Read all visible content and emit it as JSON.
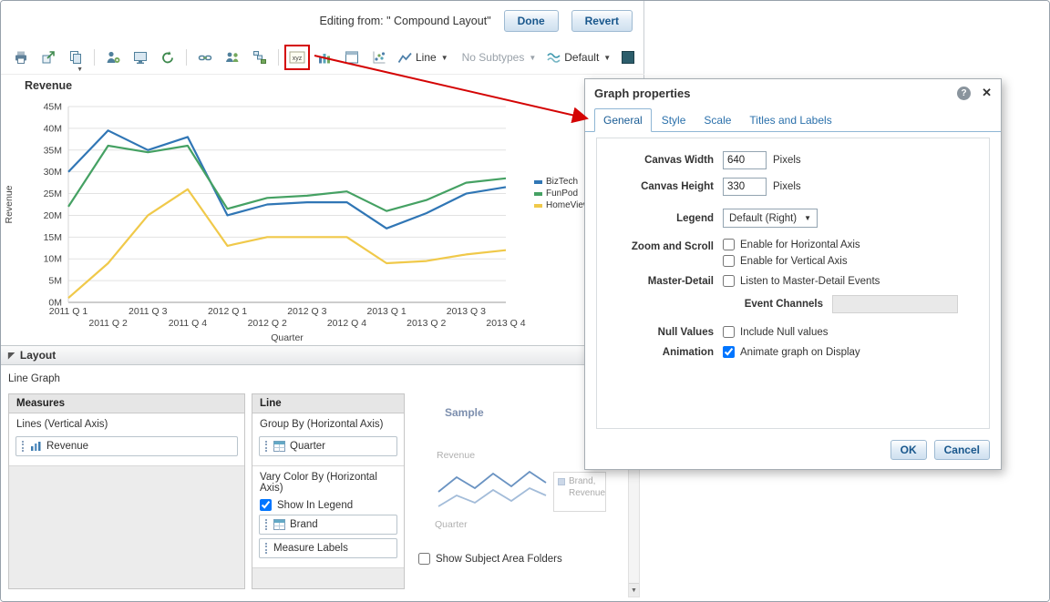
{
  "header": {
    "editing_from": "Editing from: \" Compound Layout\"",
    "done": "Done",
    "revert": "Revert"
  },
  "toolbar": {
    "icons": [
      "print",
      "export",
      "import",
      "user-settings",
      "preview",
      "refresh",
      "link",
      "groups",
      "selection-steps",
      "graph-properties",
      "bar-graph",
      "frame",
      "scatter",
      "line-type"
    ],
    "line_label": "Line",
    "no_subtypes": "No Subtypes",
    "default_label": "Default"
  },
  "chart_data": {
    "type": "line",
    "title": "Revenue",
    "ylabel": "Revenue",
    "xlabel": "Quarter",
    "unit": "M (millions)",
    "ylim": [
      0,
      45
    ],
    "ytick_step": 5,
    "yticks": [
      "0M",
      "5M",
      "10M",
      "15M",
      "20M",
      "25M",
      "30M",
      "35M",
      "40M",
      "45M"
    ],
    "grid": true,
    "legend_position": "right",
    "categories": [
      "2011 Q 1",
      "2011 Q 2",
      "2011 Q 3",
      "2011 Q 4",
      "2012 Q 1",
      "2012 Q 2",
      "2012 Q 3",
      "2012 Q 4",
      "2013 Q 1",
      "2013 Q 2",
      "2013 Q 3",
      "2013 Q 4"
    ],
    "series": [
      {
        "name": "BizTech",
        "color": "#3076b5",
        "values": [
          30,
          39.5,
          35,
          38,
          20,
          22.5,
          23,
          23,
          17,
          20.5,
          25,
          26.5
        ]
      },
      {
        "name": "FunPod",
        "color": "#45a163",
        "values": [
          22,
          36,
          34.5,
          36,
          21.5,
          24,
          24.5,
          25.5,
          21,
          23.5,
          27.5,
          28.5
        ]
      },
      {
        "name": "HomeView",
        "color": "#f0c94a",
        "values": [
          1,
          9,
          20,
          26,
          13,
          15,
          15,
          15,
          9,
          9.5,
          11,
          12
        ]
      }
    ]
  },
  "layout": {
    "title": "Layout",
    "view_type": "Line Graph",
    "measures": {
      "title": "Measures",
      "section": "Lines (Vertical Axis)",
      "items": [
        "Revenue"
      ]
    },
    "line": {
      "title": "Line",
      "group_by_label": "Group By (Horizontal Axis)",
      "group_by_items": [
        "Quarter"
      ],
      "vary_color_label": "Vary Color By (Horizontal Axis)",
      "show_in_legend": {
        "label": "Show In Legend",
        "checked": true
      },
      "items": [
        "Brand",
        "Measure Labels"
      ]
    },
    "sample": {
      "title": "Sample",
      "y_label": "Revenue",
      "x_label": "Quarter",
      "legend_label": "Brand, Revenue"
    },
    "show_subject_area_folders": {
      "label": "Show Subject Area Folders",
      "checked": false
    }
  },
  "dialog": {
    "title": "Graph properties",
    "tabs": [
      "General",
      "Style",
      "Scale",
      "Titles and Labels"
    ],
    "active_tab": "General",
    "fields": {
      "canvas_width": {
        "label": "Canvas Width",
        "value": "640",
        "unit": "Pixels"
      },
      "canvas_height": {
        "label": "Canvas Height",
        "value": "330",
        "unit": "Pixels"
      },
      "legend": {
        "label": "Legend",
        "value": "Default (Right)"
      },
      "zoom": {
        "label": "Zoom and Scroll",
        "horizontal": "Enable for Horizontal Axis",
        "horizontal_checked": false,
        "vertical": "Enable for Vertical Axis",
        "vertical_checked": false
      },
      "master_detail": {
        "label": "Master-Detail",
        "checkbox": "Listen to Master-Detail Events",
        "checked": false
      },
      "event_channels": {
        "label": "Event Channels",
        "value": ""
      },
      "null_values": {
        "label": "Null Values",
        "checkbox": "Include Null values",
        "checked": false
      },
      "animation": {
        "label": "Animation",
        "checkbox": "Animate graph on Display",
        "checked": true
      }
    },
    "ok": "OK",
    "cancel": "Cancel"
  },
  "annotation": {
    "highlight_target": "graph-properties-icon",
    "color": "#d40404"
  }
}
